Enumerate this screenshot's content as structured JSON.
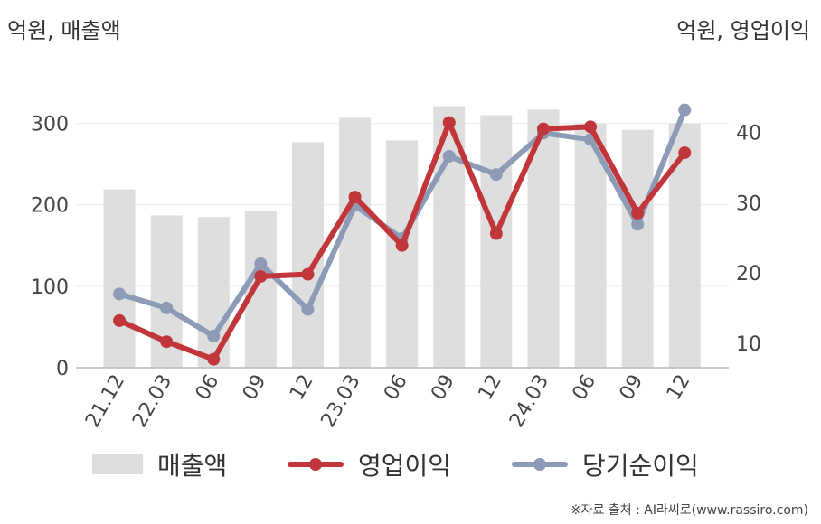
{
  "units": {
    "left": "억원, 매출액",
    "right": "억원, 영업이익"
  },
  "source": "※자료 출처 : AI라씨로(www.rassiro.com)",
  "colors": {
    "revenue": "#dedede",
    "operating_profit": "#c0363a",
    "net_income": "#8e9bb6"
  },
  "chart_data": {
    "type": "bar",
    "categories": [
      "21.12",
      "22.03",
      "06",
      "09",
      "12",
      "23.03",
      "06",
      "09",
      "12",
      "24.03",
      "06",
      "09",
      "12"
    ],
    "y_left": {
      "ticks": [
        0,
        100,
        200,
        300
      ],
      "ylim": [
        0,
        345
      ]
    },
    "y_right": {
      "ticks": [
        10,
        20,
        30,
        40
      ],
      "ylim": [
        6.5,
        46.5
      ]
    },
    "grid": true,
    "legend_position": "bottom",
    "series": [
      {
        "name": "매출액",
        "type": "bar",
        "axis": "left",
        "values": [
          219,
          187,
          185,
          193,
          277,
          307,
          279,
          321,
          310,
          317,
          300,
          292,
          300
        ]
      },
      {
        "name": "영업이익",
        "type": "line",
        "axis": "right",
        "values": [
          13.2,
          10.2,
          7.7,
          19.5,
          19.8,
          30.8,
          23.9,
          41.4,
          25.6,
          40.5,
          40.8,
          28.5,
          37.1
        ]
      },
      {
        "name": "당기순이익",
        "type": "line",
        "axis": "right",
        "values": [
          17.0,
          15.0,
          11.0,
          21.3,
          14.8,
          29.6,
          24.9,
          36.6,
          34.0,
          39.9,
          39.0,
          26.9,
          43.2
        ]
      }
    ]
  }
}
